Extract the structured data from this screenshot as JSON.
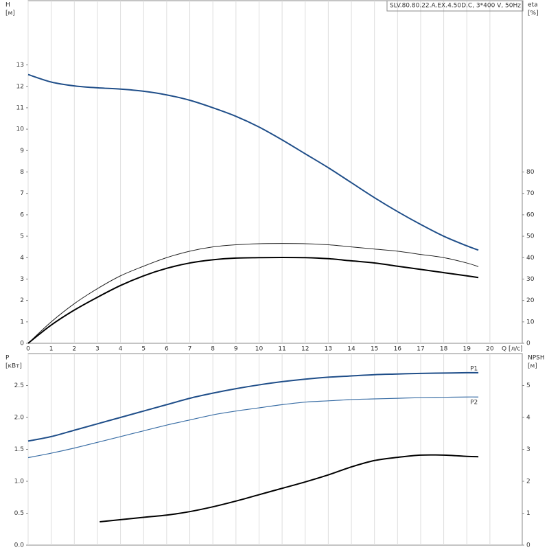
{
  "chart_data": [
    {
      "type": "line",
      "title": "SLV.80.80.22.A.EX.4.50D.C, 3*400 V, 50Hz",
      "xlabel": "Q [л/с]",
      "ylabel": [
        "H",
        "[м]"
      ],
      "y2label": [
        "eta",
        "[%]"
      ],
      "xlim": [
        0,
        21.4
      ],
      "xticks": [
        0,
        1,
        2,
        3,
        4,
        5,
        6,
        7,
        8,
        9,
        10,
        11,
        12,
        13,
        14,
        15,
        16,
        17,
        18,
        19,
        20
      ],
      "show_xtick_labels": true,
      "ylim": [
        0,
        16
      ],
      "yticks": [
        0,
        1,
        2,
        3,
        4,
        5,
        6,
        7,
        8,
        9,
        10,
        11,
        12,
        13
      ],
      "y2lim": [
        0,
        160
      ],
      "y2ticks": [
        0,
        10,
        20,
        30,
        40,
        50,
        60,
        70,
        80
      ],
      "grid": "x",
      "series": [
        {
          "color": "#1f4e89",
          "width": 2,
          "x": [
            0,
            1,
            2,
            3,
            4,
            5,
            6,
            7,
            8,
            9,
            10,
            11,
            12,
            13,
            14,
            15,
            16,
            17,
            18,
            19,
            19.5
          ],
          "values": [
            12.55,
            12.2,
            12.02,
            11.93,
            11.87,
            11.77,
            11.6,
            11.35,
            11.0,
            10.6,
            10.1,
            9.5,
            8.85,
            8.2,
            7.5,
            6.8,
            6.15,
            5.55,
            5.0,
            4.55,
            4.35
          ]
        },
        {
          "color": "#222222",
          "width": 1,
          "axis": "y2",
          "x": [
            0,
            1,
            2,
            3,
            4,
            5,
            6,
            7,
            8,
            9,
            10,
            11,
            12,
            13,
            14,
            15,
            16,
            17,
            18,
            19,
            19.5
          ],
          "values": [
            0,
            10,
            18.5,
            25.5,
            31.5,
            36,
            40,
            43,
            45,
            46,
            46.5,
            46.6,
            46.5,
            46,
            45,
            44,
            43,
            41.5,
            40,
            37.5,
            35.8
          ]
        },
        {
          "color": "#000000",
          "width": 2,
          "axis": "y2",
          "x": [
            0,
            1,
            2,
            3,
            4,
            5,
            6,
            7,
            8,
            9,
            10,
            11,
            12,
            13,
            14,
            15,
            16,
            17,
            18,
            19,
            19.5
          ],
          "values": [
            0,
            8.5,
            15.5,
            21.5,
            27,
            31.5,
            35,
            37.5,
            39,
            39.8,
            40,
            40.1,
            40,
            39.5,
            38.5,
            37.5,
            36,
            34.5,
            33,
            31.5,
            30.7
          ]
        }
      ]
    },
    {
      "type": "line",
      "ylabel": [
        "P",
        "[кВт]"
      ],
      "y2label": [
        "NPSH",
        "[м]"
      ],
      "xlim": [
        0,
        21.4
      ],
      "xticks": [
        0,
        1,
        2,
        3,
        4,
        5,
        6,
        7,
        8,
        9,
        10,
        11,
        12,
        13,
        14,
        15,
        16,
        17,
        18,
        19,
        20
      ],
      "show_xtick_labels": false,
      "ylim": [
        0,
        3
      ],
      "yticks": [
        {
          "value": 0,
          "label": "0.0"
        },
        0.5,
        {
          "value": 1,
          "label": "1.0"
        },
        1.5,
        {
          "value": 2,
          "label": "2.0"
        },
        2.5
      ],
      "y2lim": [
        0,
        6
      ],
      "y2ticks": [
        0,
        1,
        2,
        3,
        4,
        5
      ],
      "grid": "x",
      "series": [
        {
          "name": "P1",
          "color": "#1f4e89",
          "width": 2,
          "x": [
            0,
            1,
            2,
            3,
            4,
            5,
            6,
            7,
            8,
            9,
            10,
            11,
            12,
            13,
            14,
            15,
            16,
            17,
            18,
            19,
            19.5
          ],
          "values": [
            1.63,
            1.7,
            1.8,
            1.9,
            2.0,
            2.1,
            2.2,
            2.3,
            2.38,
            2.45,
            2.51,
            2.56,
            2.6,
            2.63,
            2.65,
            2.67,
            2.68,
            2.69,
            2.695,
            2.7,
            2.7
          ]
        },
        {
          "name": "P2",
          "color": "#3a6ea5",
          "width": 1.2,
          "x": [
            0,
            1,
            2,
            3,
            4,
            5,
            6,
            7,
            8,
            9,
            10,
            11,
            12,
            13,
            14,
            15,
            16,
            17,
            18,
            19,
            19.5
          ],
          "values": [
            1.37,
            1.44,
            1.52,
            1.61,
            1.7,
            1.79,
            1.88,
            1.96,
            2.04,
            2.1,
            2.15,
            2.2,
            2.24,
            2.26,
            2.28,
            2.29,
            2.3,
            2.31,
            2.315,
            2.32,
            2.32
          ]
        },
        {
          "color": "#000000",
          "width": 2,
          "axis": "y2",
          "x": [
            3.1,
            5,
            6,
            7,
            8,
            9,
            10,
            11,
            12,
            13,
            14,
            15,
            16,
            17,
            18,
            19,
            19.5
          ],
          "values": [
            0.73,
            0.87,
            0.94,
            1.05,
            1.2,
            1.38,
            1.58,
            1.78,
            1.98,
            2.2,
            2.45,
            2.65,
            2.75,
            2.82,
            2.82,
            2.78,
            2.77
          ]
        }
      ]
    }
  ]
}
